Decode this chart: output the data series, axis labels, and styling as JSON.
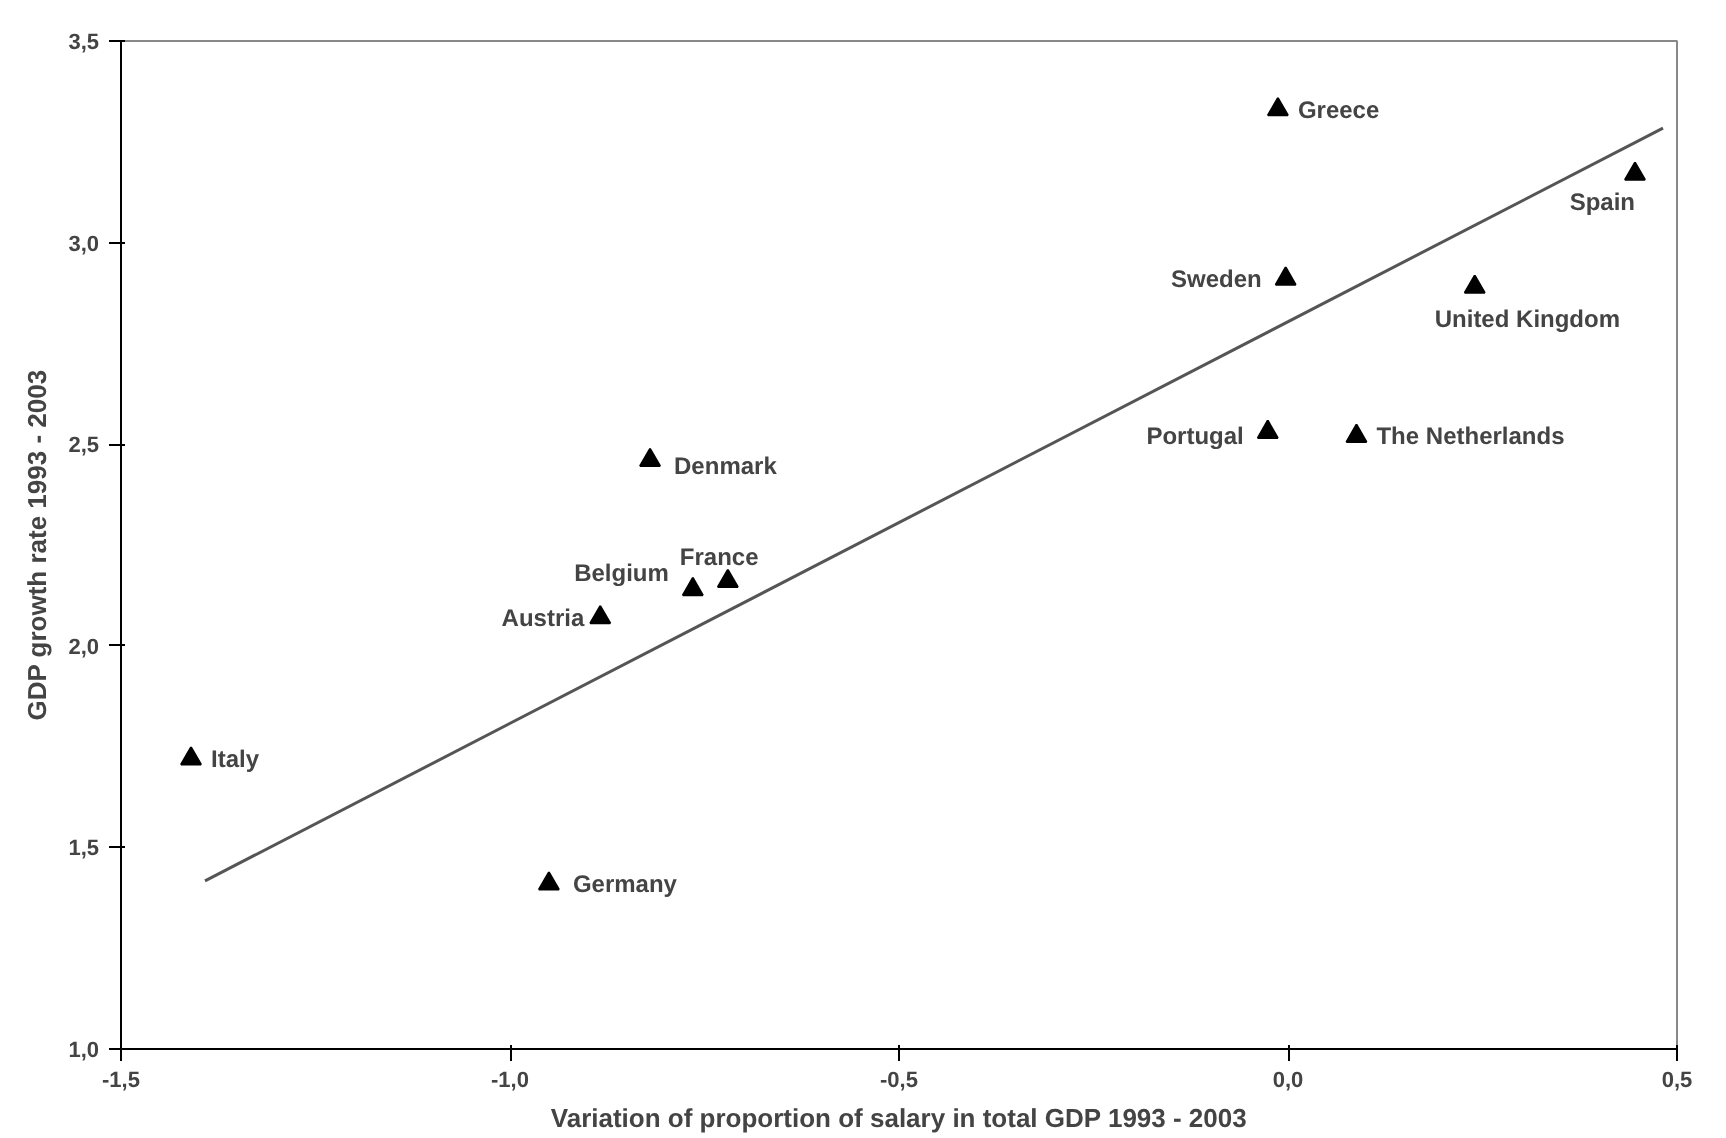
{
  "chart_data": {
    "type": "scatter",
    "xlabel": "Variation of proportion of salary in total GDP 1993 - 2003",
    "ylabel": "GDP growth rate 1993 - 2003",
    "series": [
      {
        "color": "#000000",
        "marker": "triangle",
        "x": [
          -0.013,
          0.446,
          -0.003,
          0.24,
          -0.026,
          0.088,
          -0.82,
          -0.72,
          -0.765,
          -0.884,
          -1.41,
          -0.95
        ],
        "values": [
          3.33,
          3.17,
          2.91,
          2.89,
          2.53,
          2.52,
          2.46,
          2.16,
          2.14,
          2.07,
          1.72,
          1.41
        ]
      },
      {
        "type": "line",
        "color": "#555555",
        "x": [
          -1.392,
          0.482
        ],
        "values": [
          1.417,
          3.284
        ]
      }
    ],
    "annotations": [
      {
        "text": "Greece",
        "x": -0.013,
        "y": 3.33
      },
      {
        "text": "Spain",
        "x": 0.446,
        "y": 3.17
      },
      {
        "text": "Sweden",
        "x": -0.003,
        "y": 2.91
      },
      {
        "text": "United Kingdom",
        "x": 0.24,
        "y": 2.89
      },
      {
        "text": "Portugal",
        "x": -0.026,
        "y": 2.53
      },
      {
        "text": "The Netherlands",
        "x": 0.088,
        "y": 2.52
      },
      {
        "text": "Denmark",
        "x": -0.82,
        "y": 2.46
      },
      {
        "text": "France",
        "x": -0.72,
        "y": 2.16
      },
      {
        "text": "Belgium",
        "x": -0.765,
        "y": 2.14
      },
      {
        "text": "Austria",
        "x": -0.884,
        "y": 2.07
      },
      {
        "text": "Italy",
        "x": -1.41,
        "y": 1.72
      },
      {
        "text": "Germany",
        "x": -0.95,
        "y": 1.41
      }
    ],
    "xlim": [
      -1.5,
      0.5
    ],
    "ylim": [
      1.0,
      3.5
    ],
    "xticks": [
      {
        "value": -1.5,
        "label": "-1,5"
      },
      {
        "value": -1.0,
        "label": "-1,0"
      },
      {
        "value": -0.5,
        "label": "-0,5"
      },
      {
        "value": 0.0,
        "label": "0,0"
      },
      {
        "value": 0.5,
        "label": "0,5"
      }
    ],
    "yticks": [
      {
        "value": 1.0,
        "label": "1,0"
      },
      {
        "value": 1.5,
        "label": "1,5"
      },
      {
        "value": 2.0,
        "label": "2,0"
      },
      {
        "value": 2.5,
        "label": "2,5"
      },
      {
        "value": 3.0,
        "label": "3,0"
      },
      {
        "value": 3.5,
        "label": "3,5"
      }
    ],
    "grid": false
  }
}
